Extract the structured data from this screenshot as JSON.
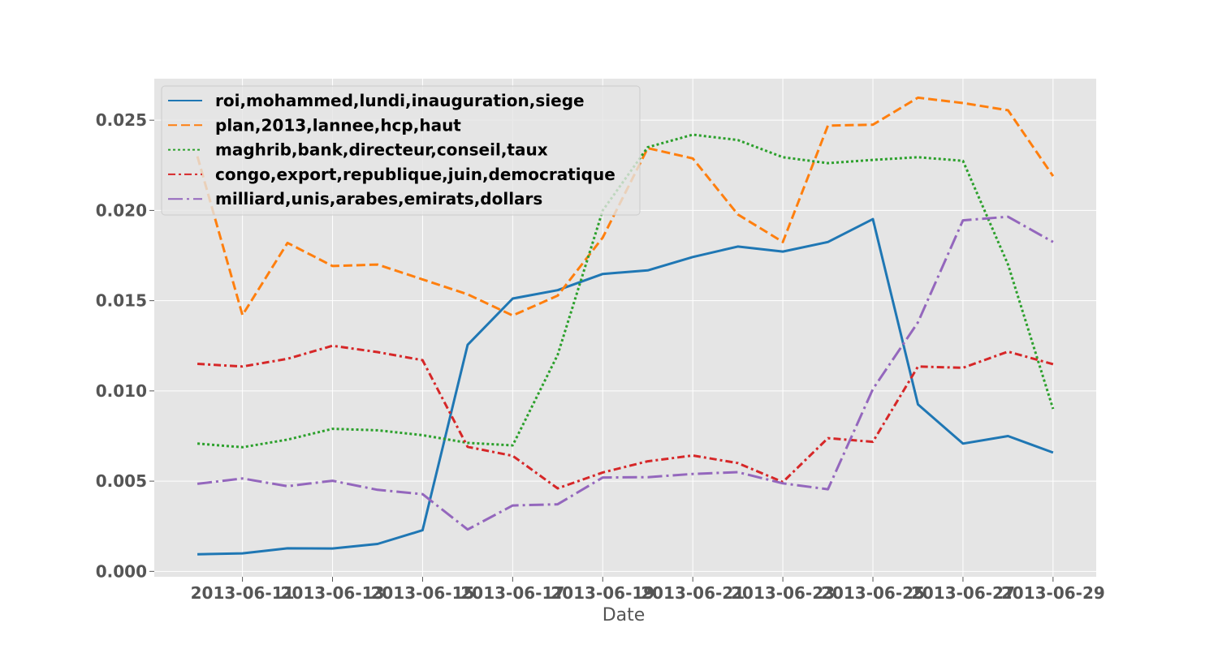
{
  "chart_data": {
    "type": "line",
    "title": "",
    "xlabel": "Date",
    "ylabel": "",
    "x": [
      "2013-06-10",
      "2013-06-11",
      "2013-06-12",
      "2013-06-13",
      "2013-06-14",
      "2013-06-15",
      "2013-06-16",
      "2013-06-17",
      "2013-06-18",
      "2013-06-19",
      "2013-06-20",
      "2013-06-21",
      "2013-06-22",
      "2013-06-23",
      "2013-06-24",
      "2013-06-25",
      "2013-06-26",
      "2013-06-27",
      "2013-06-28",
      "2013-06-29"
    ],
    "xticks": [
      "2013-06-11",
      "2013-06-13",
      "2013-06-15",
      "2013-06-17",
      "2013-06-19",
      "2013-06-21",
      "2013-06-23",
      "2013-06-25",
      "2013-06-27",
      "2013-06-29"
    ],
    "xlim": [
      "2013-06-09T01:00",
      "2013-06-29T23:00"
    ],
    "ylim": [
      -0.0003,
      0.0273
    ],
    "yticks": [
      "0.000",
      "0.005",
      "0.010",
      "0.015",
      "0.020",
      "0.025"
    ],
    "yticks_values": [
      0,
      0.005,
      0.01,
      0.015,
      0.02,
      0.025
    ],
    "grid": true,
    "legend_position": "top-left",
    "background": "#e5e5e5",
    "series": [
      {
        "name": "roi,mohammed,lundi,inauguration,siege",
        "color": "#1f77b4",
        "dash": "solid",
        "values": [
          0.00095,
          0.001,
          0.00128,
          0.00127,
          0.00152,
          0.00228,
          0.01255,
          0.01512,
          0.01558,
          0.01648,
          0.01668,
          0.01742,
          0.018,
          0.01772,
          0.01825,
          0.01952,
          0.00925,
          0.00708,
          0.0075,
          0.00658
        ]
      },
      {
        "name": "plan,2013,lannee,hcp,haut",
        "color": "#ff7f0e",
        "dash": "dashed",
        "values": [
          0.023,
          0.0142,
          0.0182,
          0.01692,
          0.017,
          0.01618,
          0.01535,
          0.01418,
          0.01528,
          0.0185,
          0.02345,
          0.02288,
          0.01978,
          0.01825,
          0.0247,
          0.02475,
          0.02625,
          0.02595,
          0.02555,
          0.0219
        ]
      },
      {
        "name": "maghrib,bank,directeur,conseil,taux",
        "color": "#2ca02c",
        "dash": "dotted",
        "values": [
          0.00708,
          0.00688,
          0.0073,
          0.0079,
          0.00782,
          0.00755,
          0.00712,
          0.00698,
          0.012,
          0.02,
          0.0235,
          0.0242,
          0.0239,
          0.02295,
          0.02262,
          0.0228,
          0.02295,
          0.02275,
          0.017,
          0.009
        ]
      },
      {
        "name": "congo,export,republique,juin,democratique",
        "color": "#d62728",
        "dash": "dashdot",
        "values": [
          0.0115,
          0.01135,
          0.01178,
          0.0125,
          0.01215,
          0.0117,
          0.0069,
          0.0064,
          0.0046,
          0.00548,
          0.0061,
          0.00642,
          0.006,
          0.00495,
          0.00738,
          0.00718,
          0.01135,
          0.01128,
          0.01218,
          0.01148
        ]
      },
      {
        "name": "milliard,unis,arabes,emirats,dollars",
        "color": "#9467bd",
        "dash": "longdashdot",
        "values": [
          0.00485,
          0.00515,
          0.00472,
          0.00502,
          0.00452,
          0.00428,
          0.00232,
          0.00365,
          0.00372,
          0.0052,
          0.00522,
          0.0054,
          0.0055,
          0.00488,
          0.00455,
          0.0101,
          0.0138,
          0.01945,
          0.01965,
          0.01825
        ]
      }
    ]
  }
}
